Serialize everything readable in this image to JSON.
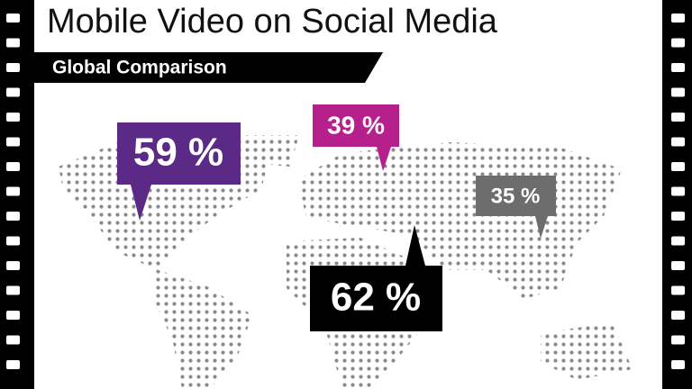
{
  "header": {
    "title": "Mobile Video on Social Media",
    "subtitle": "Global Comparison"
  },
  "callouts": [
    {
      "text": "59 %",
      "color": "#5b2a86"
    },
    {
      "text": "39 %",
      "color": "#b5208c"
    },
    {
      "text": "35 %",
      "color": "#6d6d6d"
    },
    {
      "text": "62 %",
      "color": "#000000"
    }
  ]
}
